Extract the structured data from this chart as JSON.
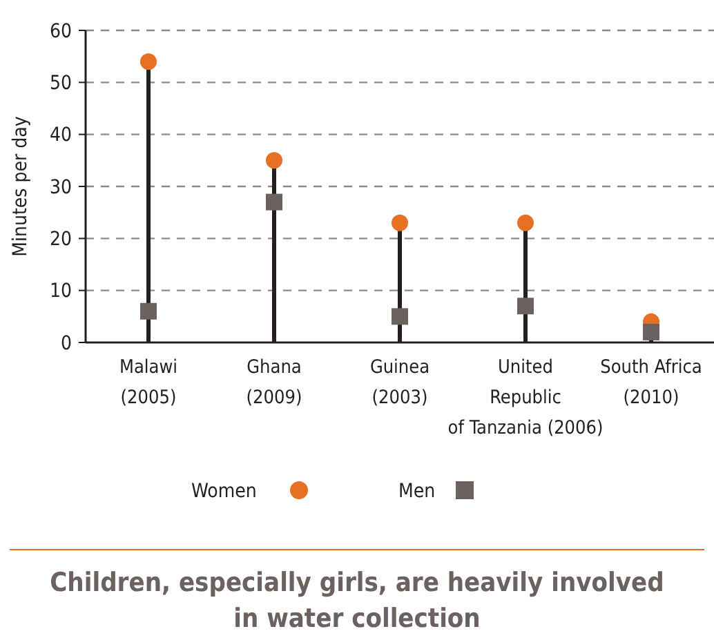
{
  "chart_data": {
    "type": "lollipop",
    "title": "Children, especially girls, are heavily involved in water collection",
    "ylabel": "Minutes per day",
    "categories": [
      "Malawi\n(2005)",
      "Ghana\n(2009)",
      "Guinea\n(2003)",
      "United\nRepublic\nof Tanzania (2006)",
      "South Africa\n(2010)"
    ],
    "series": [
      {
        "name": "Women",
        "color": "#e87024",
        "marker": "circle",
        "values": [
          54,
          35,
          23,
          23,
          4
        ]
      },
      {
        "name": "Men",
        "type": "scatter",
        "color": "#6b6160",
        "marker": "square",
        "values": [
          6,
          27,
          5,
          7,
          2
        ]
      }
    ],
    "ylim": [
      0,
      60
    ],
    "yticks": [
      0,
      10,
      20,
      30,
      40,
      50,
      60
    ],
    "grid": "y",
    "legend": "bottom"
  }
}
